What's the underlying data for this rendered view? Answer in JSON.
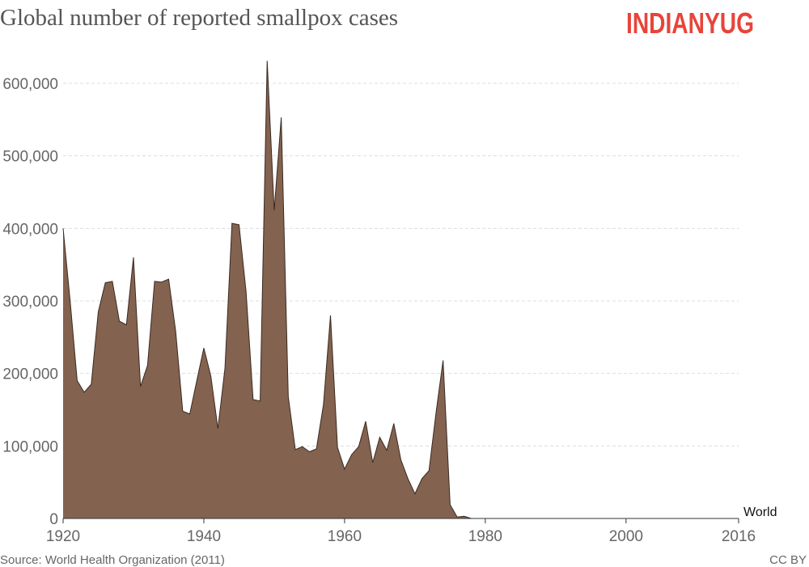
{
  "chart_data": {
    "type": "area",
    "title": "Global number of reported smallpox cases",
    "brand": "INDIANYUG",
    "source": "Source: World Health Organization (2011)",
    "license": "CC BY",
    "x": [
      1920,
      1921,
      1922,
      1923,
      1924,
      1925,
      1926,
      1927,
      1928,
      1929,
      1930,
      1931,
      1932,
      1933,
      1934,
      1935,
      1936,
      1937,
      1938,
      1939,
      1940,
      1941,
      1942,
      1943,
      1944,
      1945,
      1946,
      1947,
      1948,
      1949,
      1950,
      1951,
      1952,
      1953,
      1954,
      1955,
      1956,
      1957,
      1958,
      1959,
      1960,
      1961,
      1962,
      1963,
      1964,
      1965,
      1966,
      1967,
      1968,
      1969,
      1970,
      1971,
      1972,
      1973,
      1974,
      1975,
      1976,
      1977,
      1978,
      1979,
      1980,
      1981,
      1982,
      1983,
      1984,
      1985,
      1986,
      1987,
      1988,
      1989,
      1990,
      1991,
      1992,
      1993,
      1994,
      1995,
      1996,
      1997,
      1998,
      1999,
      2000,
      2001,
      2002,
      2003,
      2004,
      2005,
      2006,
      2007,
      2008,
      2009,
      2010,
      2011,
      2012,
      2013,
      2014,
      2015,
      2016
    ],
    "series": [
      {
        "name": "World",
        "color": "#836250",
        "values": [
          400000,
          300000,
          190000,
          174000,
          185000,
          285000,
          325000,
          327000,
          272000,
          267000,
          360000,
          182000,
          211000,
          327000,
          326000,
          330000,
          258000,
          148000,
          144000,
          190000,
          235000,
          196000,
          124000,
          207000,
          407000,
          405000,
          313000,
          164000,
          162000,
          631000,
          425000,
          553000,
          168000,
          95000,
          99000,
          92000,
          96000,
          157000,
          280000,
          98000,
          68000,
          88000,
          99000,
          134000,
          77000,
          112000,
          94000,
          131000,
          81000,
          55000,
          34000,
          55000,
          66000,
          146000,
          218000,
          19000,
          2000,
          3000,
          0,
          0,
          0,
          0,
          0,
          0,
          0,
          0,
          0,
          0,
          0,
          0,
          0,
          0,
          0,
          0,
          0,
          0,
          0,
          0,
          0,
          0,
          0,
          0,
          0,
          0,
          0,
          0,
          0,
          0,
          0,
          0,
          0,
          0,
          0,
          0,
          0,
          0,
          0
        ]
      }
    ],
    "xlim": [
      1920,
      2016
    ],
    "xticks": [
      1920,
      1940,
      1960,
      1980,
      2000,
      2016
    ],
    "ylim": [
      0,
      600000
    ],
    "yticks": [
      0,
      {
        "value": 100000,
        "label": "100,000"
      },
      {
        "value": 200000,
        "label": "200,000"
      },
      {
        "value": 300000,
        "label": "300,000"
      },
      {
        "value": 400000,
        "label": "400,000"
      },
      {
        "value": 500000,
        "label": "500,000"
      },
      {
        "value": 600000,
        "label": "600,000"
      }
    ],
    "grid": true
  }
}
